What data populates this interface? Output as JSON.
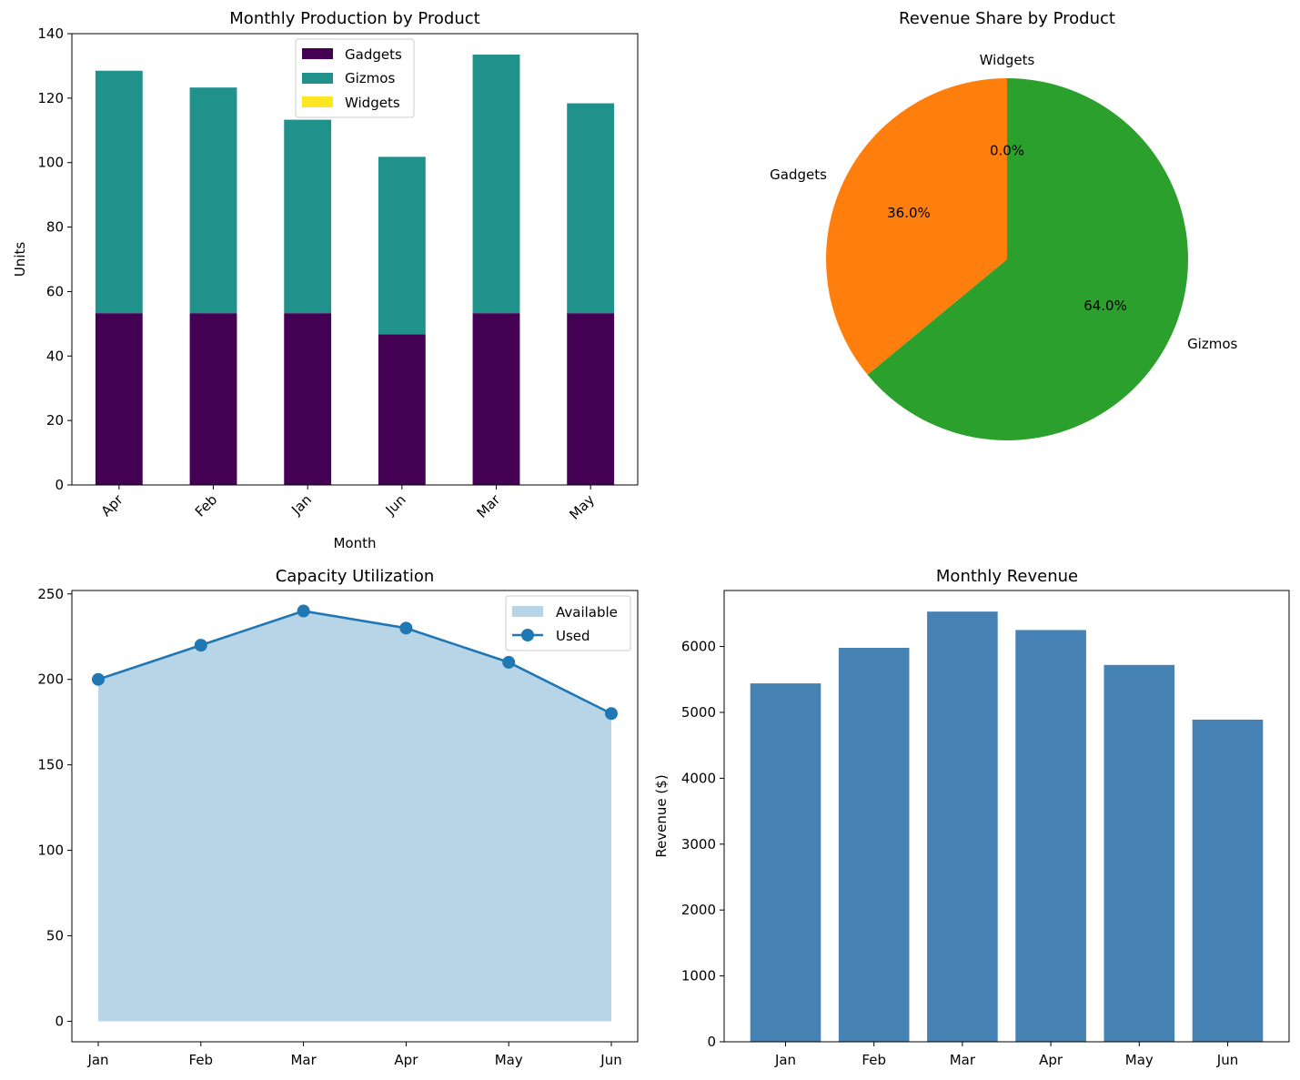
{
  "charts": {
    "production": {
      "type": "bar",
      "stacked": true,
      "title": "Monthly Production by Product",
      "xlabel": "Month",
      "ylabel": "Units",
      "ylim": [
        0,
        140
      ],
      "yticks": [
        "0",
        "20",
        "40",
        "60",
        "80",
        "100",
        "120",
        "140"
      ],
      "categories": [
        "Apr",
        "Feb",
        "Jan",
        "Jun",
        "Mar",
        "May"
      ],
      "series": [
        {
          "name": "Gadgets",
          "color": "#440154",
          "values": [
            53.3,
            53.3,
            53.3,
            46.7,
            53.3,
            53.3
          ]
        },
        {
          "name": "Gizmos",
          "color": "#21918c",
          "values": [
            75.2,
            70.0,
            60.0,
            55.1,
            80.2,
            65.1
          ]
        },
        {
          "name": "Widgets",
          "color": "#fde725",
          "values": [
            0,
            0,
            0,
            0,
            0,
            0
          ]
        }
      ],
      "legend": "upper-center"
    },
    "revenue_share": {
      "type": "pie",
      "title": "Revenue Share by Product",
      "slices": [
        {
          "name": "Widgets",
          "value": 0.0,
          "color": "#1f77b4",
          "pct": "0.0%"
        },
        {
          "name": "Gadgets",
          "value": 36.0,
          "color": "#ff7f0e",
          "pct": "36.0%"
        },
        {
          "name": "Gizmos",
          "value": 64.0,
          "color": "#2ca02c",
          "pct": "64.0%"
        }
      ],
      "startangle": 90
    },
    "capacity": {
      "type": "area",
      "title": "Capacity Utilization",
      "categories": [
        "Jan",
        "Feb",
        "Mar",
        "Apr",
        "May",
        "Jun"
      ],
      "ylim": [
        -12,
        252
      ],
      "yticks": [
        "0",
        "50",
        "100",
        "150",
        "200",
        "250"
      ],
      "series": [
        {
          "name": "Available",
          "kind": "area",
          "color": "#b8d4e7",
          "values": [
            200,
            220,
            240,
            230,
            210,
            180
          ]
        },
        {
          "name": "Used",
          "kind": "line",
          "color": "#1f77b4",
          "values": [
            200,
            220,
            240,
            230,
            210,
            180
          ]
        }
      ],
      "legend": "upper-right"
    },
    "monthly_revenue": {
      "type": "bar",
      "title": "Monthly Revenue",
      "ylabel": "Revenue ($)",
      "ylim": [
        0,
        6850
      ],
      "yticks": [
        "0",
        "1000",
        "2000",
        "3000",
        "4000",
        "5000",
        "6000"
      ],
      "categories": [
        "Jan",
        "Feb",
        "Mar",
        "Apr",
        "May",
        "Jun"
      ],
      "color": "#4682b4",
      "values": [
        5440,
        5980,
        6530,
        6250,
        5720,
        4890
      ]
    }
  }
}
